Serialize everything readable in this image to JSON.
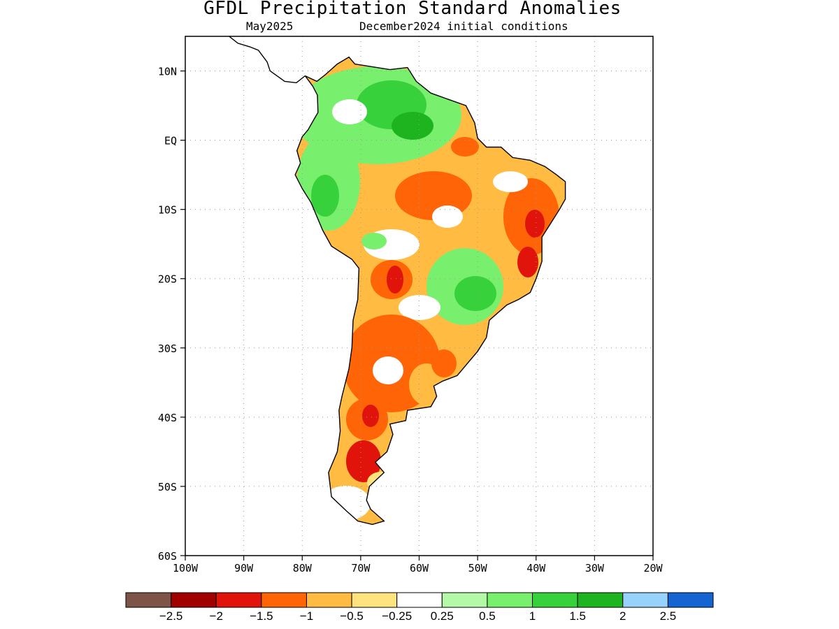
{
  "title": "GFDL Precipitation Standard Anomalies",
  "subtitle_left": "May2025",
  "subtitle_right": "December2024 initial conditions",
  "map": {
    "lon_range": [
      -100,
      -20
    ],
    "lat_range": [
      -60,
      15
    ],
    "lat_ticks": [
      {
        "value": 10,
        "label": "10N"
      },
      {
        "value": 0,
        "label": "EQ"
      },
      {
        "value": -10,
        "label": "10S"
      },
      {
        "value": -20,
        "label": "20S"
      },
      {
        "value": -30,
        "label": "30S"
      },
      {
        "value": -40,
        "label": "40S"
      },
      {
        "value": -50,
        "label": "50S"
      },
      {
        "value": -60,
        "label": "60S"
      }
    ],
    "lon_ticks": [
      {
        "value": -100,
        "label": "100W"
      },
      {
        "value": -90,
        "label": "90W"
      },
      {
        "value": -80,
        "label": "80W"
      },
      {
        "value": -70,
        "label": "70W"
      },
      {
        "value": -60,
        "label": "60W"
      },
      {
        "value": -50,
        "label": "50W"
      },
      {
        "value": -40,
        "label": "40W"
      },
      {
        "value": -30,
        "label": "30W"
      },
      {
        "value": -20,
        "label": "20W"
      }
    ],
    "grid": "dotted",
    "continent_outline": [
      [
        -79.5,
        9.3
      ],
      [
        -77.5,
        8.5
      ],
      [
        -76,
        9.5
      ],
      [
        -74,
        11
      ],
      [
        -72,
        12
      ],
      [
        -71,
        11
      ],
      [
        -68,
        10.6
      ],
      [
        -65,
        10.2
      ],
      [
        -62,
        10.5
      ],
      [
        -60.5,
        8.5
      ],
      [
        -58,
        6.8
      ],
      [
        -55,
        5.9
      ],
      [
        -52,
        5
      ],
      [
        -50.5,
        2.5
      ],
      [
        -50,
        0.3
      ],
      [
        -48.5,
        -1
      ],
      [
        -46,
        -1
      ],
      [
        -44,
        -2.5
      ],
      [
        -41,
        -2.9
      ],
      [
        -38.5,
        -3.8
      ],
      [
        -36.5,
        -5
      ],
      [
        -35,
        -6
      ],
      [
        -35,
        -8.5
      ],
      [
        -36,
        -10
      ],
      [
        -37.5,
        -12
      ],
      [
        -39,
        -14
      ],
      [
        -39,
        -17.5
      ],
      [
        -40,
        -20
      ],
      [
        -41,
        -22
      ],
      [
        -43,
        -23
      ],
      [
        -45,
        -23.8
      ],
      [
        -48,
        -26
      ],
      [
        -48.5,
        -28.5
      ],
      [
        -50,
        -30.5
      ],
      [
        -51.5,
        -32
      ],
      [
        -53.5,
        -34
      ],
      [
        -56,
        -34.8
      ],
      [
        -57.5,
        -35.5
      ],
      [
        -57,
        -37
      ],
      [
        -58,
        -38.5
      ],
      [
        -62,
        -39
      ],
      [
        -62.3,
        -40.5
      ],
      [
        -65,
        -41
      ],
      [
        -64.5,
        -42.5
      ],
      [
        -65.5,
        -45
      ],
      [
        -67.5,
        -46.5
      ],
      [
        -66,
        -48
      ],
      [
        -68.5,
        -50
      ],
      [
        -69,
        -52
      ],
      [
        -68.3,
        -53.3
      ],
      [
        -66,
        -55
      ],
      [
        -68,
        -55.5
      ],
      [
        -70.5,
        -55
      ],
      [
        -72.5,
        -53.5
      ],
      [
        -75,
        -51.5
      ],
      [
        -75.5,
        -48
      ],
      [
        -74,
        -45
      ],
      [
        -73.5,
        -42
      ],
      [
        -73.7,
        -39
      ],
      [
        -73.2,
        -37
      ],
      [
        -72,
        -33
      ],
      [
        -71.5,
        -30
      ],
      [
        -71.3,
        -26
      ],
      [
        -70.5,
        -23
      ],
      [
        -70.3,
        -18.5
      ],
      [
        -71.5,
        -17.2
      ],
      [
        -75,
        -15.3
      ],
      [
        -76.5,
        -13
      ],
      [
        -78.5,
        -9
      ],
      [
        -80,
        -7
      ],
      [
        -81.2,
        -5
      ],
      [
        -80.3,
        -3.3
      ],
      [
        -80.9,
        -1.5
      ],
      [
        -80,
        0.5
      ],
      [
        -79,
        1.5
      ],
      [
        -78,
        3
      ],
      [
        -77.3,
        4
      ],
      [
        -77.4,
        6.5
      ],
      [
        -78.2,
        7.8
      ],
      [
        -79.5,
        9.3
      ]
    ],
    "central_america_outline": [
      [
        -79.5,
        9.3
      ],
      [
        -81,
        8.3
      ],
      [
        -83,
        8.5
      ],
      [
        -85.5,
        10
      ],
      [
        -86,
        11.3
      ],
      [
        -87.5,
        13
      ],
      [
        -89,
        13.5
      ],
      [
        -91,
        14
      ],
      [
        -92.5,
        15
      ],
      [
        -95,
        16
      ],
      [
        -97,
        16
      ],
      [
        -99,
        17
      ],
      [
        -100,
        18
      ]
    ],
    "caribbean_coast_outline": [
      [
        -100,
        18
      ],
      [
        -97.5,
        18
      ],
      [
        -96,
        18.5
      ]
    ]
  },
  "colorbar": {
    "colors": [
      "#7d5447",
      "#a00000",
      "#e0140a",
      "#ff6407",
      "#ffbb42",
      "#ffe37e",
      "#ffffff",
      "#b3f9a7",
      "#78f06e",
      "#37d13c",
      "#1eb420",
      "#96d2fa",
      "#1464d2"
    ],
    "labels": [
      "−2.5",
      "−2",
      "−1.5",
      "−1",
      "−0.5",
      "−0.25",
      "0.25",
      "0.5",
      "1",
      "1.5",
      "2",
      "2.5"
    ]
  }
}
